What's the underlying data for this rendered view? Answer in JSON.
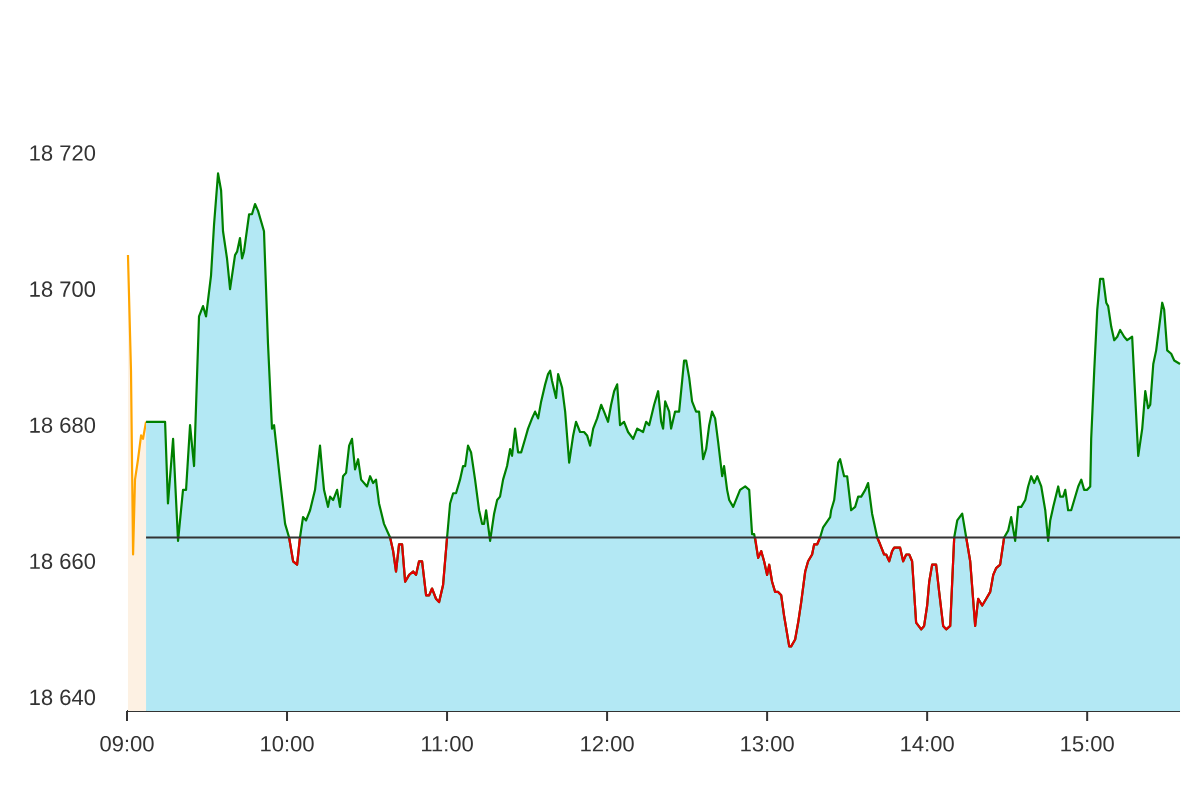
{
  "chart_data": {
    "type": "area",
    "xlim": [
      9,
      15.58
    ],
    "ylim": [
      18638,
      18720
    ],
    "xticks": [
      {
        "value": 9,
        "label": "09:00"
      },
      {
        "value": 10,
        "label": "10:00"
      },
      {
        "value": 11,
        "label": "11:00"
      },
      {
        "value": 12,
        "label": "12:00"
      },
      {
        "value": 13,
        "label": "13:00"
      },
      {
        "value": 14,
        "label": "14:00"
      },
      {
        "value": 15,
        "label": "15:00"
      }
    ],
    "yticks": [
      {
        "value": 18640,
        "label": "18 640"
      },
      {
        "value": 18660,
        "label": "18 660"
      },
      {
        "value": 18680,
        "label": "18 680"
      },
      {
        "value": 18700,
        "label": "18 700"
      },
      {
        "value": 18720,
        "label": "18 720"
      }
    ],
    "ref_lines": [
      {
        "axis": "y",
        "value": 18663.5,
        "color": "#333333"
      }
    ],
    "series": [
      {
        "color": "#ffa500",
        "x": [
          9.006,
          9.025,
          9.038,
          9.05,
          9.069,
          9.088,
          9.1,
          9.119
        ],
        "values": [
          18705,
          18688,
          18661,
          18672,
          18675,
          18678.5,
          18678,
          18680.5
        ]
      },
      {
        "color": "#008000",
        "x": [
          9.119,
          9.238,
          9.256,
          9.288,
          9.319,
          9.35,
          9.369,
          9.394,
          9.419,
          9.45,
          9.475,
          9.494,
          9.525,
          9.544,
          9.569,
          9.588,
          9.6,
          9.625,
          9.644,
          9.675,
          9.688,
          9.706,
          9.719,
          9.731,
          9.763,
          9.781,
          9.8,
          9.819,
          9.856,
          9.881,
          9.906,
          9.919,
          9.956,
          9.988,
          10.013,
          10.038,
          10.063,
          10.081,
          10.1,
          10.119,
          10.144,
          10.175,
          10.206,
          10.219,
          10.231,
          10.256,
          10.269,
          10.288,
          10.313,
          10.331,
          10.35,
          10.369,
          10.388,
          10.406,
          10.425,
          10.444,
          10.463,
          10.5,
          10.519,
          10.538,
          10.556,
          10.575,
          10.606,
          10.644,
          10.663,
          10.681,
          10.7,
          10.719,
          10.738,
          10.763,
          10.788,
          10.806,
          10.825,
          10.844,
          10.869,
          10.888,
          10.906,
          10.931,
          10.95,
          10.975,
          11.0,
          11.019,
          11.038,
          11.056,
          11.081,
          11.1,
          11.113,
          11.131,
          11.15,
          11.175,
          11.2,
          11.219,
          11.231,
          11.244,
          11.269,
          11.294,
          11.313,
          11.331,
          11.35,
          11.375,
          11.394,
          11.406,
          11.425,
          11.444,
          11.463,
          11.488,
          11.506,
          11.531,
          11.55,
          11.569,
          11.588,
          11.613,
          11.631,
          11.644,
          11.656,
          11.681,
          11.694,
          11.719,
          11.738,
          11.763,
          11.788,
          11.806,
          11.831,
          11.856,
          11.875,
          11.894,
          11.913,
          11.938,
          11.963,
          11.981,
          12.006,
          12.025,
          12.044,
          12.063,
          12.081,
          12.106,
          12.131,
          12.163,
          12.188,
          12.225,
          12.244,
          12.263,
          12.294,
          12.319,
          12.338,
          12.35,
          12.363,
          12.388,
          12.4,
          12.425,
          12.45,
          12.469,
          12.481,
          12.494,
          12.513,
          12.531,
          12.556,
          12.575,
          12.6,
          12.619,
          12.638,
          12.656,
          12.675,
          12.694,
          12.719,
          12.731,
          12.75,
          12.763,
          12.788,
          12.831,
          12.863,
          12.888,
          12.906,
          12.919,
          12.944,
          12.963,
          12.981,
          13.0,
          13.013,
          13.031,
          13.05,
          13.069,
          13.088,
          13.106,
          13.138,
          13.15,
          13.175,
          13.194,
          13.213,
          13.238,
          13.256,
          13.281,
          13.294,
          13.313,
          13.331,
          13.35,
          13.394,
          13.4,
          13.419,
          13.444,
          13.456,
          13.481,
          13.5,
          13.525,
          13.55,
          13.569,
          13.588,
          13.613,
          13.631,
          13.656,
          13.688,
          13.706,
          13.731,
          13.744,
          13.763,
          13.781,
          13.794,
          13.831,
          13.85,
          13.869,
          13.888,
          13.906,
          13.931,
          13.963,
          13.981,
          14.0,
          14.013,
          14.031,
          14.056,
          14.075,
          14.1,
          14.119,
          14.144,
          14.169,
          14.188,
          14.219,
          14.244,
          14.269,
          14.3,
          14.319,
          14.344,
          14.369,
          14.394,
          14.413,
          14.431,
          14.456,
          14.481,
          14.506,
          14.525,
          14.55,
          14.569,
          14.588,
          14.613,
          14.631,
          14.65,
          14.669,
          14.688,
          14.713,
          14.738,
          14.756,
          14.769,
          14.788,
          14.819,
          14.831,
          14.85,
          14.863,
          14.881,
          14.9,
          14.919,
          14.944,
          14.963,
          14.981,
          15.0,
          15.019,
          15.025,
          15.044,
          15.063,
          15.081,
          15.1,
          15.119,
          15.131,
          15.15,
          15.169,
          15.188,
          15.206,
          15.231,
          15.25,
          15.281,
          15.319,
          15.344,
          15.363,
          15.381,
          15.394,
          15.413,
          15.431,
          15.45,
          15.469,
          15.481,
          15.5,
          15.525,
          15.544,
          15.58
        ],
        "values": [
          18680.5,
          18680.5,
          18668.5,
          18678,
          18663,
          18670.5,
          18670.5,
          18680,
          18674,
          18696,
          18697.5,
          18696,
          18702,
          18709.5,
          18717,
          18714.5,
          18708.5,
          18704.5,
          18700,
          18705,
          18705.5,
          18707.5,
          18704.5,
          18705.5,
          18711,
          18711,
          18712.5,
          18711.5,
          18708.5,
          18692,
          18679.5,
          18680,
          18672,
          18665.5,
          18663.5,
          18660,
          18659.5,
          18663.5,
          18666.5,
          18666,
          18667.5,
          18670.5,
          18677,
          18673.5,
          18670.5,
          18668,
          18669.5,
          18669,
          18670.5,
          18668,
          18672.5,
          18673,
          18677,
          18678,
          18673.5,
          18675,
          18672,
          18671,
          18672.5,
          18671.5,
          18672,
          18668.5,
          18665.5,
          18663.5,
          18661.5,
          18658.5,
          18662.5,
          18662.5,
          18657,
          18658,
          18658.5,
          18658,
          18660,
          18660,
          18655,
          18655,
          18656,
          18654.5,
          18654,
          18656.5,
          18663.5,
          18668.5,
          18670,
          18670,
          18672,
          18674,
          18674,
          18677,
          18676,
          18672,
          18667.5,
          18665.5,
          18665.5,
          18667.5,
          18663,
          18667,
          18669,
          18669.5,
          18672,
          18674,
          18676.5,
          18675.5,
          18679.5,
          18676,
          18676,
          18678,
          18679.5,
          18681,
          18682,
          18681,
          18683.5,
          18686,
          18687.5,
          18688,
          18686.5,
          18684,
          18687.5,
          18685.5,
          18682,
          18674.5,
          18678.5,
          18680.5,
          18679,
          18679,
          18678.5,
          18677,
          18679.5,
          18681,
          18683,
          18682,
          18680.5,
          18683,
          18685,
          18686,
          18680,
          18680.5,
          18679,
          18678,
          18679.5,
          18679,
          18680.5,
          18680,
          18683,
          18685,
          18680.5,
          18679.5,
          18683.5,
          18682,
          18679.5,
          18682,
          18682,
          18686.5,
          18689.5,
          18689.5,
          18687,
          18683.5,
          18682,
          18682,
          18675,
          18676.5,
          18680,
          18682,
          18681,
          18677.5,
          18672.5,
          18674,
          18670.5,
          18669,
          18668,
          18670.5,
          18671,
          18670.5,
          18664,
          18664,
          18660.5,
          18661.5,
          18660,
          18658,
          18659.5,
          18657,
          18655.5,
          18655.5,
          18655,
          18652,
          18647.5,
          18647.5,
          18648.5,
          18651,
          18654,
          18658.5,
          18660,
          18661,
          18662.5,
          18662.5,
          18663.5,
          18665,
          18666.5,
          18667.5,
          18669,
          18674.5,
          18675,
          18672.5,
          18672.5,
          18667.5,
          18668,
          18669.5,
          18669.5,
          18670.5,
          18671.5,
          18667,
          18663.5,
          18662.5,
          18661,
          18661,
          18660,
          18661.5,
          18662,
          18662,
          18660,
          18661,
          18661,
          18660,
          18651,
          18650,
          18650.5,
          18653.5,
          18657,
          18659.5,
          18659.5,
          18655.5,
          18650.5,
          18650,
          18650.5,
          18663.5,
          18666,
          18667,
          18663.5,
          18660,
          18650.5,
          18654.5,
          18653.5,
          18654.5,
          18655.5,
          18658,
          18659,
          18659.5,
          18663.5,
          18664.5,
          18666.5,
          18663,
          18668,
          18668,
          18669,
          18671,
          18672.5,
          18671.5,
          18672.5,
          18671,
          18667.5,
          18663,
          18666,
          18668,
          18671,
          18669.5,
          18669.5,
          18670.5,
          18667.5,
          18667.5,
          18669,
          18671,
          18672,
          18670.5,
          18670.5,
          18671,
          18678,
          18688,
          18697,
          18701.5,
          18701.5,
          18698,
          18697.5,
          18694.5,
          18692.5,
          18693,
          18694,
          18693,
          18692.5,
          18693,
          18675.5,
          18679.5,
          18685,
          18682.5,
          18683,
          18689,
          18691,
          18694.5,
          18698,
          18697,
          18691,
          18690.5,
          18689.5,
          18689
        ]
      },
      {
        "type": "line",
        "color": "#e00000",
        "x": [
          10.013,
          10.038,
          10.063,
          10.081,
          10.3,
          10.644,
          10.663,
          10.681,
          10.7,
          10.719,
          10.738,
          10.763,
          10.788,
          10.806,
          10.825,
          10.844,
          10.869,
          10.888,
          10.906,
          10.931,
          10.95,
          10.975,
          11.0,
          12.0,
          12.925,
          12.944,
          12.963,
          12.981,
          13.0,
          13.013,
          13.031,
          13.05,
          13.069,
          13.088,
          13.106,
          13.138,
          13.15,
          13.175,
          13.194,
          13.213,
          13.238,
          13.256,
          13.281,
          13.294,
          13.313,
          13.331,
          13.5,
          13.688,
          13.706,
          13.731,
          13.744,
          13.763,
          13.781,
          13.794,
          13.831,
          13.85,
          13.869,
          13.888,
          13.906,
          13.931,
          13.963,
          13.981,
          14.0,
          14.013,
          14.031,
          14.056,
          14.075,
          14.1,
          14.119,
          14.144,
          14.169,
          14.2,
          14.244,
          14.269,
          14.3,
          14.319,
          14.344,
          14.369,
          14.394,
          14.413,
          14.431,
          14.456,
          14.481
        ],
        "values": [
          18663.5,
          18660,
          18659.5,
          18663.5,
          null,
          18663.5,
          18661.5,
          18658.5,
          18662.5,
          18662.5,
          18657,
          18658,
          18658.5,
          18658,
          18660,
          18660,
          18655,
          18655,
          18656,
          18654.5,
          18654,
          18656.5,
          18663.5,
          null,
          18663.5,
          18660.5,
          18661.5,
          18660,
          18658,
          18659.5,
          18657,
          18655.5,
          18655.5,
          18655,
          18652,
          18647.5,
          18647.5,
          18648.5,
          18651,
          18654,
          18658.5,
          18660,
          18661,
          18662.5,
          18662.5,
          18663.5,
          null,
          18663.5,
          18662.5,
          18661,
          18661,
          18660,
          18661.5,
          18662,
          18662,
          18660,
          18661,
          18661,
          18660,
          18651,
          18650,
          18650.5,
          18653.5,
          18657,
          18659.5,
          18659.5,
          18655.5,
          18650.5,
          18650,
          18650.5,
          18663.5,
          null,
          18663.5,
          18660,
          18650.5,
          18654.5,
          18653.5,
          18654.5,
          18655.5,
          18658,
          18659,
          18659.5,
          18663.5
        ]
      }
    ]
  }
}
